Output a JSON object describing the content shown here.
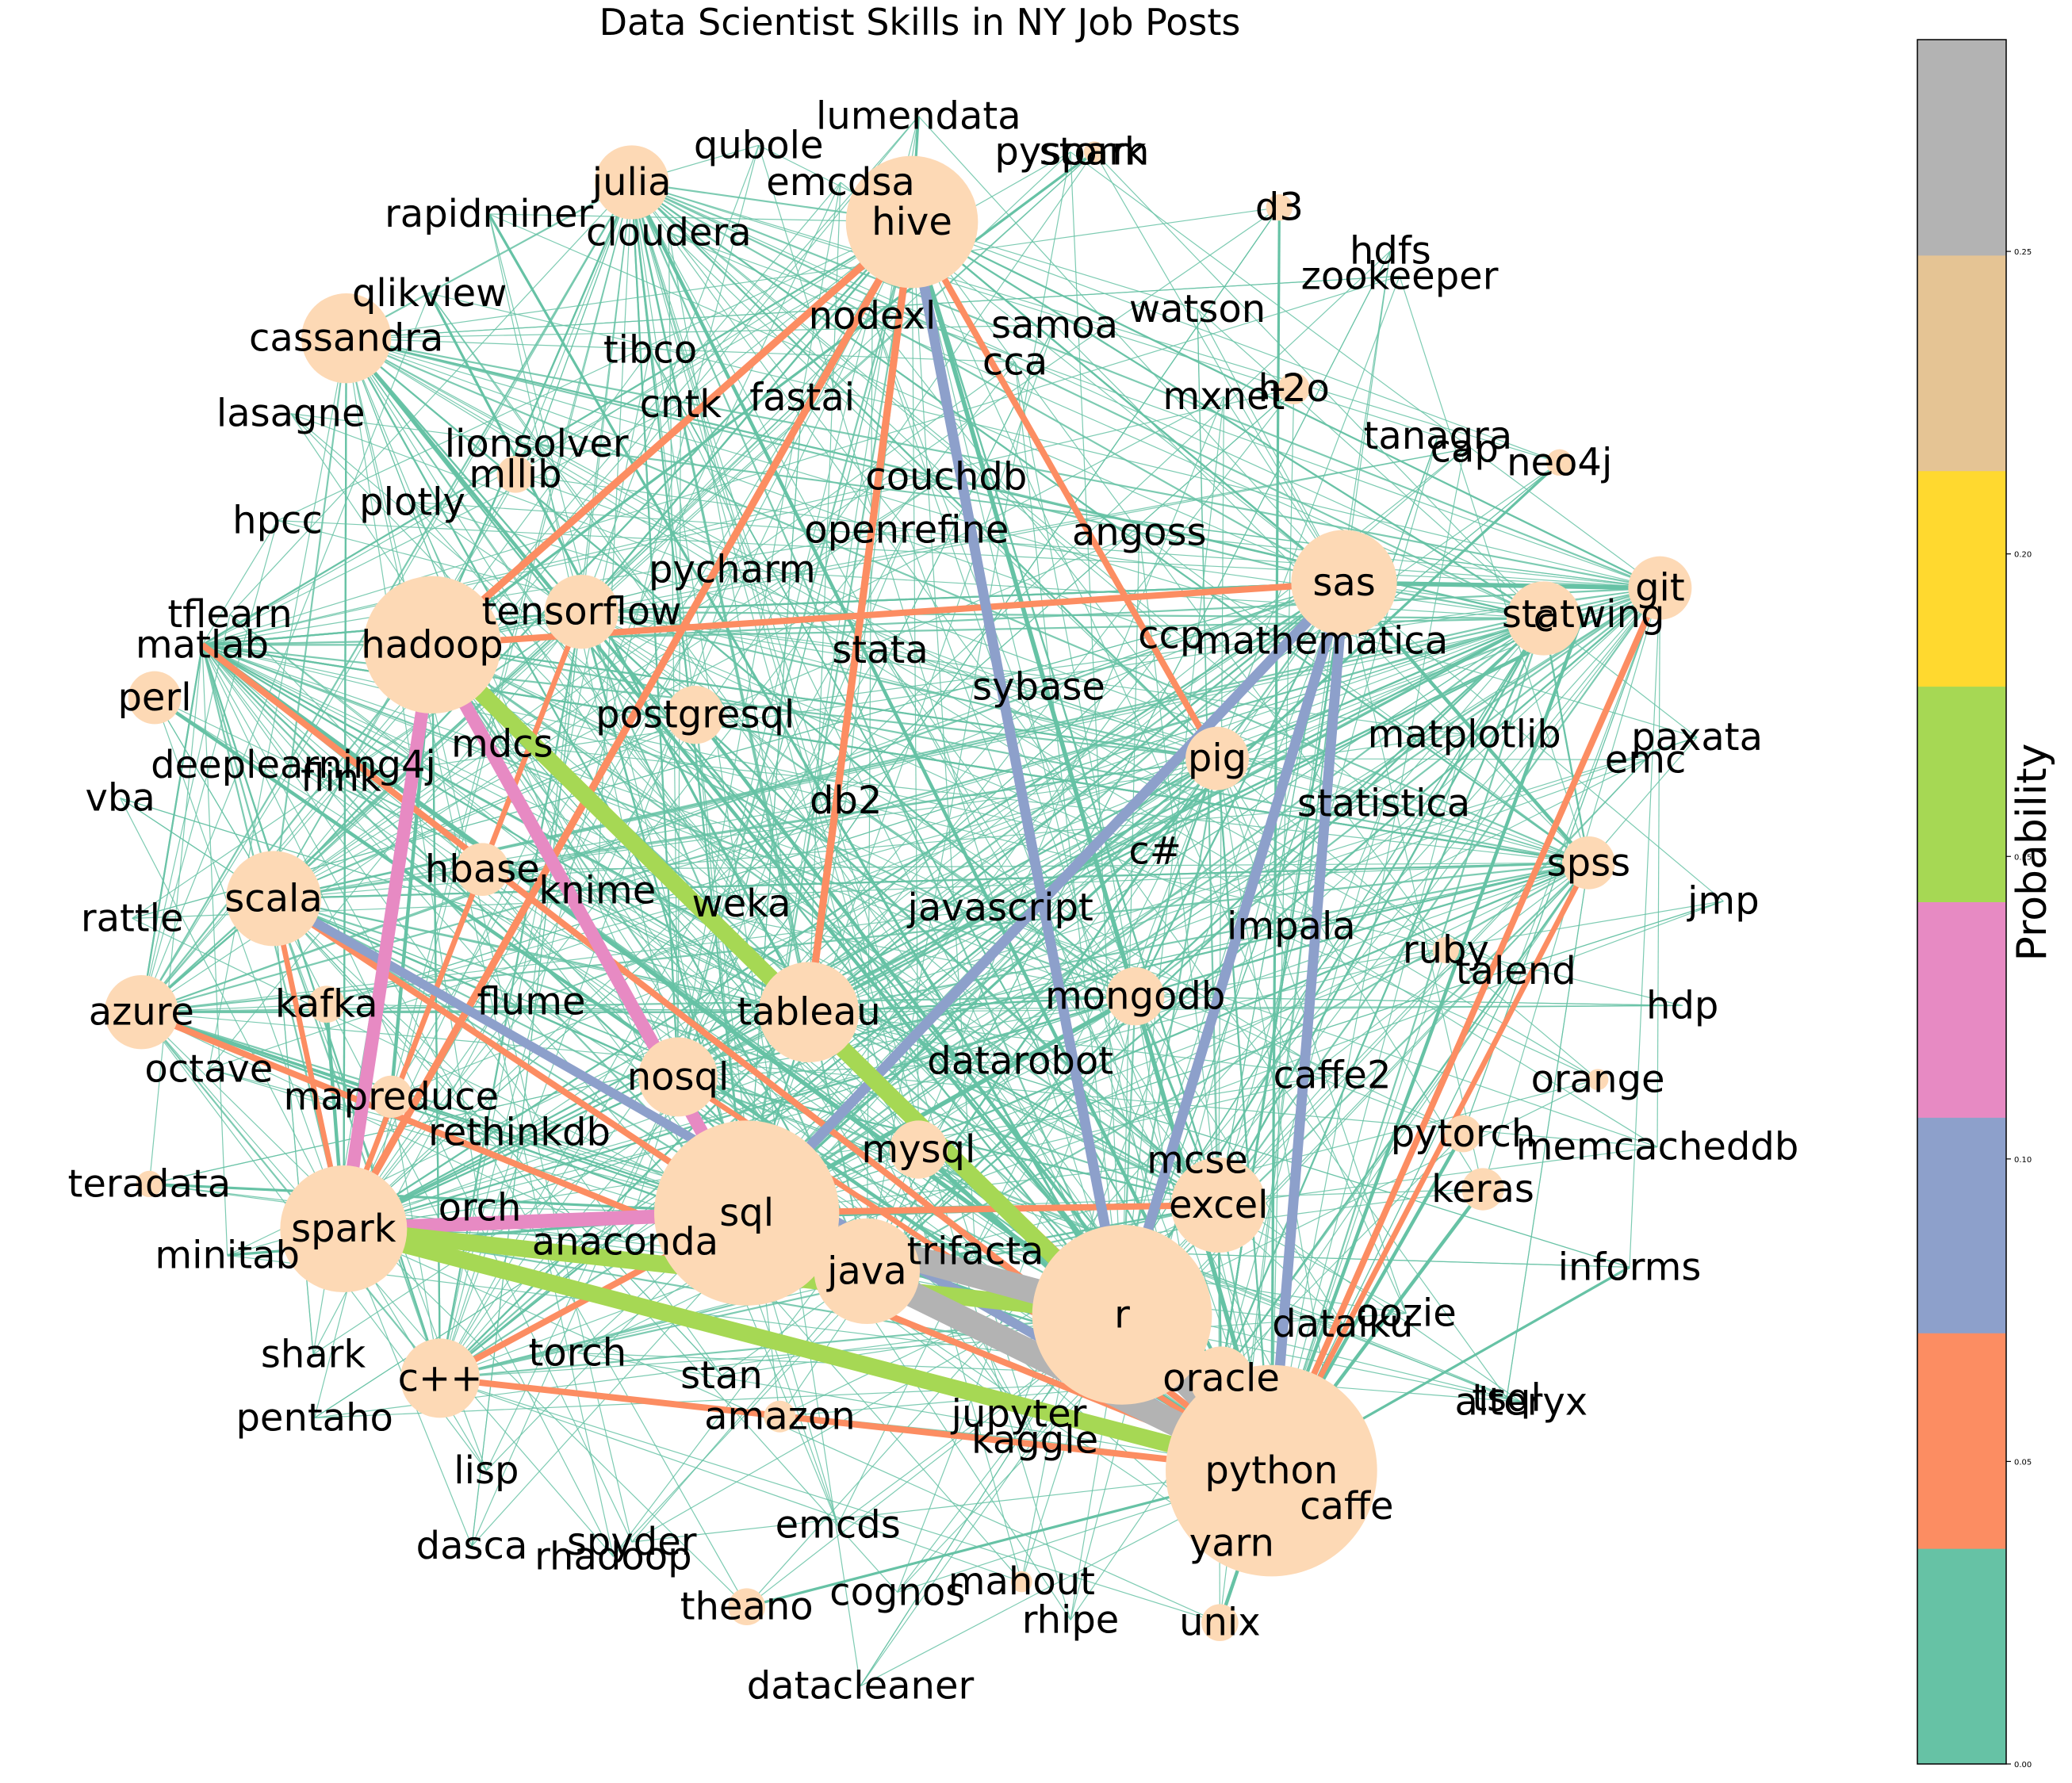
{
  "title": "Data Scientist Skills in NY Job Posts",
  "colorbar": {
    "label": "Probability",
    "ticks": [
      "0.00",
      "0.05",
      "0.10",
      "0.15",
      "0.20",
      "0.25"
    ],
    "tick_values": [
      0,
      0.05,
      0.1,
      0.15,
      0.2,
      0.25
    ],
    "range": [
      0,
      0.285
    ],
    "bands": [
      "#66c2a5",
      "#fc8d62",
      "#8da0cb",
      "#e78ac3",
      "#a6d854",
      "#ffd92f",
      "#e5c494",
      "#b3b3b3"
    ]
  },
  "node_color": "#fdd9b5",
  "nodes": [
    {
      "id": "lumendata",
      "label": "lumendata"
    },
    {
      "id": "qubole",
      "label": "qubole"
    },
    {
      "id": "pyspark",
      "label": "pyspark"
    },
    {
      "id": "storm",
      "label": "storm"
    },
    {
      "id": "julia",
      "label": "julia"
    },
    {
      "id": "emcdsa",
      "label": "emcdsa"
    },
    {
      "id": "hive",
      "label": "hive"
    },
    {
      "id": "rapidminer",
      "label": "rapidminer"
    },
    {
      "id": "cloudera",
      "label": "cloudera"
    },
    {
      "id": "d3",
      "label": "d3"
    },
    {
      "id": "hdfs",
      "label": "hdfs"
    },
    {
      "id": "zookeeper",
      "label": "zookeeper"
    },
    {
      "id": "qlikview",
      "label": "qlikview"
    },
    {
      "id": "watson",
      "label": "watson"
    },
    {
      "id": "nodexl",
      "label": "nodexl"
    },
    {
      "id": "samoa",
      "label": "samoa"
    },
    {
      "id": "cassandra",
      "label": "cassandra"
    },
    {
      "id": "tibco",
      "label": "tibco"
    },
    {
      "id": "cca",
      "label": "cca"
    },
    {
      "id": "mxnet",
      "label": "mxnet"
    },
    {
      "id": "h2o",
      "label": "h2o"
    },
    {
      "id": "fastai",
      "label": "fastai"
    },
    {
      "id": "cntk",
      "label": "cntk"
    },
    {
      "id": "lasagne",
      "label": "lasagne"
    },
    {
      "id": "tanagra",
      "label": "tanagra"
    },
    {
      "id": "cap",
      "label": "cap"
    },
    {
      "id": "neo4j",
      "label": "neo4j"
    },
    {
      "id": "lionsolver",
      "label": "lionsolver"
    },
    {
      "id": "mllib",
      "label": "mllib"
    },
    {
      "id": "couchdb",
      "label": "couchdb"
    },
    {
      "id": "plotly",
      "label": "plotly"
    },
    {
      "id": "hpcc",
      "label": "hpcc"
    },
    {
      "id": "openrefine",
      "label": "openrefine"
    },
    {
      "id": "angoss",
      "label": "angoss"
    },
    {
      "id": "pycharm",
      "label": "pycharm"
    },
    {
      "id": "sas",
      "label": "sas"
    },
    {
      "id": "git",
      "label": "git"
    },
    {
      "id": "tflearn",
      "label": "tflearn"
    },
    {
      "id": "tensorflow",
      "label": "tensorflow"
    },
    {
      "id": "statwing",
      "label": "statwing"
    },
    {
      "id": "c",
      "label": "c"
    },
    {
      "id": "matlab",
      "label": "matlab"
    },
    {
      "id": "hadoop",
      "label": "hadoop"
    },
    {
      "id": "ccp",
      "label": "ccp"
    },
    {
      "id": "mathematica",
      "label": "mathematica"
    },
    {
      "id": "stata",
      "label": "stata"
    },
    {
      "id": "perl",
      "label": "perl"
    },
    {
      "id": "sybase",
      "label": "sybase"
    },
    {
      "id": "postgresql",
      "label": "postgresql"
    },
    {
      "id": "matplotlib",
      "label": "matplotlib"
    },
    {
      "id": "paxata",
      "label": "paxata"
    },
    {
      "id": "mdcs",
      "label": "mdcs"
    },
    {
      "id": "deeplearning4j",
      "label": "deeplearning4j"
    },
    {
      "id": "flink",
      "label": "flink"
    },
    {
      "id": "pig",
      "label": "pig"
    },
    {
      "id": "emc",
      "label": "emc"
    },
    {
      "id": "vba",
      "label": "vba"
    },
    {
      "id": "db2",
      "label": "db2"
    },
    {
      "id": "statistica",
      "label": "statistica"
    },
    {
      "id": "c#",
      "label": "c#"
    },
    {
      "id": "spss",
      "label": "spss"
    },
    {
      "id": "scala",
      "label": "scala"
    },
    {
      "id": "hbase",
      "label": "hbase"
    },
    {
      "id": "knime",
      "label": "knime"
    },
    {
      "id": "weka",
      "label": "weka"
    },
    {
      "id": "javascript",
      "label": "javascript"
    },
    {
      "id": "jmp",
      "label": "jmp"
    },
    {
      "id": "rattle",
      "label": "rattle"
    },
    {
      "id": "impala",
      "label": "impala"
    },
    {
      "id": "ruby",
      "label": "ruby"
    },
    {
      "id": "talend",
      "label": "talend"
    },
    {
      "id": "azure",
      "label": "azure"
    },
    {
      "id": "kafka",
      "label": "kafka"
    },
    {
      "id": "flume",
      "label": "flume"
    },
    {
      "id": "tableau",
      "label": "tableau"
    },
    {
      "id": "mongodb",
      "label": "mongodb"
    },
    {
      "id": "hdp",
      "label": "hdp"
    },
    {
      "id": "octave",
      "label": "octave"
    },
    {
      "id": "datarobot",
      "label": "datarobot"
    },
    {
      "id": "nosql",
      "label": "nosql"
    },
    {
      "id": "caffe2",
      "label": "caffe2"
    },
    {
      "id": "orange",
      "label": "orange"
    },
    {
      "id": "mapreduce",
      "label": "mapreduce"
    },
    {
      "id": "rethinkdb",
      "label": "rethinkdb"
    },
    {
      "id": "pytorch",
      "label": "pytorch"
    },
    {
      "id": "memcacheddb",
      "label": "memcacheddb"
    },
    {
      "id": "mysql",
      "label": "mysql"
    },
    {
      "id": "mcse",
      "label": "mcse"
    },
    {
      "id": "teradata",
      "label": "teradata"
    },
    {
      "id": "keras",
      "label": "keras"
    },
    {
      "id": "orch",
      "label": "orch"
    },
    {
      "id": "excel",
      "label": "excel"
    },
    {
      "id": "sql",
      "label": "sql"
    },
    {
      "id": "spark",
      "label": "spark"
    },
    {
      "id": "anaconda",
      "label": "anaconda"
    },
    {
      "id": "trifacta",
      "label": "trifacta"
    },
    {
      "id": "minitab",
      "label": "minitab"
    },
    {
      "id": "java",
      "label": "java"
    },
    {
      "id": "informs",
      "label": "informs"
    },
    {
      "id": "r",
      "label": "r"
    },
    {
      "id": "oozie",
      "label": "oozie"
    },
    {
      "id": "dataiku",
      "label": "dataiku"
    },
    {
      "id": "shark",
      "label": "shark"
    },
    {
      "id": "torch",
      "label": "torch"
    },
    {
      "id": "c++",
      "label": "c++"
    },
    {
      "id": "stan",
      "label": "stan"
    },
    {
      "id": "oracle",
      "label": "oracle"
    },
    {
      "id": "alteryx",
      "label": "alteryx"
    },
    {
      "id": "tsql",
      "label": "tsql"
    },
    {
      "id": "pentaho",
      "label": "pentaho"
    },
    {
      "id": "amazon",
      "label": "amazon"
    },
    {
      "id": "jupyter",
      "label": "jupyter"
    },
    {
      "id": "kaggle",
      "label": "kaggle"
    },
    {
      "id": "lisp",
      "label": "lisp"
    },
    {
      "id": "python",
      "label": "python"
    },
    {
      "id": "caffe",
      "label": "caffe"
    },
    {
      "id": "emcds",
      "label": "emcds"
    },
    {
      "id": "yarn",
      "label": "yarn"
    },
    {
      "id": "dasca",
      "label": "dasca"
    },
    {
      "id": "spyder",
      "label": "spyder"
    },
    {
      "id": "rhadoop",
      "label": "rhadoop"
    },
    {
      "id": "mahout",
      "label": "mahout"
    },
    {
      "id": "cognos",
      "label": "cognos"
    },
    {
      "id": "theano",
      "label": "theano"
    },
    {
      "id": "rhipe",
      "label": "rhipe"
    },
    {
      "id": "unix",
      "label": "unix"
    },
    {
      "id": "datacleaner",
      "label": "datacleaner"
    }
  ],
  "edges": [
    {
      "source": "python",
      "target": "r",
      "probability": 0.26
    },
    {
      "source": "python",
      "target": "sql",
      "probability": 0.25
    },
    {
      "source": "r",
      "target": "sql",
      "probability": 0.25
    },
    {
      "source": "python",
      "target": "spark",
      "probability": 0.16
    },
    {
      "source": "r",
      "target": "spark",
      "probability": 0.16
    },
    {
      "source": "hadoop",
      "target": "python",
      "probability": 0.16
    },
    {
      "source": "sql",
      "target": "spark",
      "probability": 0.13
    },
    {
      "source": "hadoop",
      "target": "spark",
      "probability": 0.12
    },
    {
      "source": "hadoop",
      "target": "sql",
      "probability": 0.12
    },
    {
      "source": "hive",
      "target": "r",
      "probability": 0.09
    },
    {
      "source": "sas",
      "target": "python",
      "probability": 0.09
    },
    {
      "source": "sas",
      "target": "r",
      "probability": 0.09
    },
    {
      "source": "sas",
      "target": "sql",
      "probability": 0.09
    },
    {
      "source": "scala",
      "target": "python",
      "probability": 0.08
    },
    {
      "source": "java",
      "target": "python",
      "probability": 0.06
    },
    {
      "source": "hive",
      "target": "hadoop",
      "probability": 0.06
    },
    {
      "source": "hive",
      "target": "tableau",
      "probability": 0.06
    },
    {
      "source": "hive",
      "target": "spark",
      "probability": 0.06
    },
    {
      "source": "sas",
      "target": "hadoop",
      "probability": 0.05
    },
    {
      "source": "c++",
      "target": "python",
      "probability": 0.05
    },
    {
      "source": "c++",
      "target": "sql",
      "probability": 0.05
    },
    {
      "source": "tableau",
      "target": "r",
      "probability": 0.05
    },
    {
      "source": "excel",
      "target": "sql",
      "probability": 0.05
    },
    {
      "source": "git",
      "target": "python",
      "probability": 0.05
    },
    {
      "source": "azure",
      "target": "python",
      "probability": 0.05
    },
    {
      "source": "scala",
      "target": "sql",
      "probability": 0.05
    },
    {
      "source": "pig",
      "target": "hive",
      "probability": 0.05
    },
    {
      "source": "matlab",
      "target": "python",
      "probability": 0.05
    },
    {
      "source": "tensorflow",
      "target": "spark",
      "probability": 0.04
    },
    {
      "source": "nosql",
      "target": "python",
      "probability": 0.04
    },
    {
      "source": "spss",
      "target": "python",
      "probability": 0.04
    },
    {
      "source": "spark",
      "target": "scala",
      "probability": 0.04
    },
    {
      "source": "java",
      "target": "sql",
      "probability": 0.04
    },
    {
      "source": "hadoop",
      "target": "r",
      "probability": 0.04
    },
    {
      "source": "sas",
      "target": "git",
      "probability": 0.03
    },
    {
      "source": "hive",
      "target": "python",
      "probability": 0.03
    },
    {
      "source": "mongodb",
      "target": "sql",
      "probability": 0.03
    },
    {
      "source": "mysql",
      "target": "python",
      "probability": 0.03
    },
    {
      "source": "oracle",
      "target": "sql",
      "probability": 0.03
    },
    {
      "source": "matlab",
      "target": "r",
      "probability": 0.03
    },
    {
      "source": "julia",
      "target": "python",
      "probability": 0.02
    },
    {
      "source": "cassandra",
      "target": "python",
      "probability": 0.02
    },
    {
      "source": "sas",
      "target": "spss",
      "probability": 0.02
    },
    {
      "source": "statwing",
      "target": "python",
      "probability": 0.02
    },
    {
      "source": "perl",
      "target": "python",
      "probability": 0.02
    },
    {
      "source": "postgresql",
      "target": "python",
      "probability": 0.02
    },
    {
      "source": "hbase",
      "target": "spark",
      "probability": 0.02
    },
    {
      "source": "kafka",
      "target": "spark",
      "probability": 0.02
    },
    {
      "source": "mapreduce",
      "target": "hadoop",
      "probability": 0.02
    },
    {
      "source": "keras",
      "target": "python",
      "probability": 0.02
    },
    {
      "source": "pytorch",
      "target": "python",
      "probability": 0.02
    },
    {
      "source": "amazon",
      "target": "python",
      "probability": 0.02
    },
    {
      "source": "unix",
      "target": "python",
      "probability": 0.02
    },
    {
      "source": "teradata",
      "target": "sql",
      "probability": 0.01
    },
    {
      "source": "lumendata",
      "target": "hive",
      "probability": 0.01
    },
    {
      "source": "storm",
      "target": "hadoop",
      "probability": 0.01
    },
    {
      "source": "d3",
      "target": "python",
      "probability": 0.01
    },
    {
      "source": "rapidminer",
      "target": "r",
      "probability": 0.01
    },
    {
      "source": "neo4j",
      "target": "sql",
      "probability": 0.01
    },
    {
      "source": "theano",
      "target": "python",
      "probability": 0.01
    },
    {
      "source": "minitab",
      "target": "sql",
      "probability": 0.01
    },
    {
      "source": "informs",
      "target": "python",
      "probability": 0.01
    },
    {
      "source": "qlikview",
      "target": "tableau",
      "probability": 0.01
    }
  ]
}
